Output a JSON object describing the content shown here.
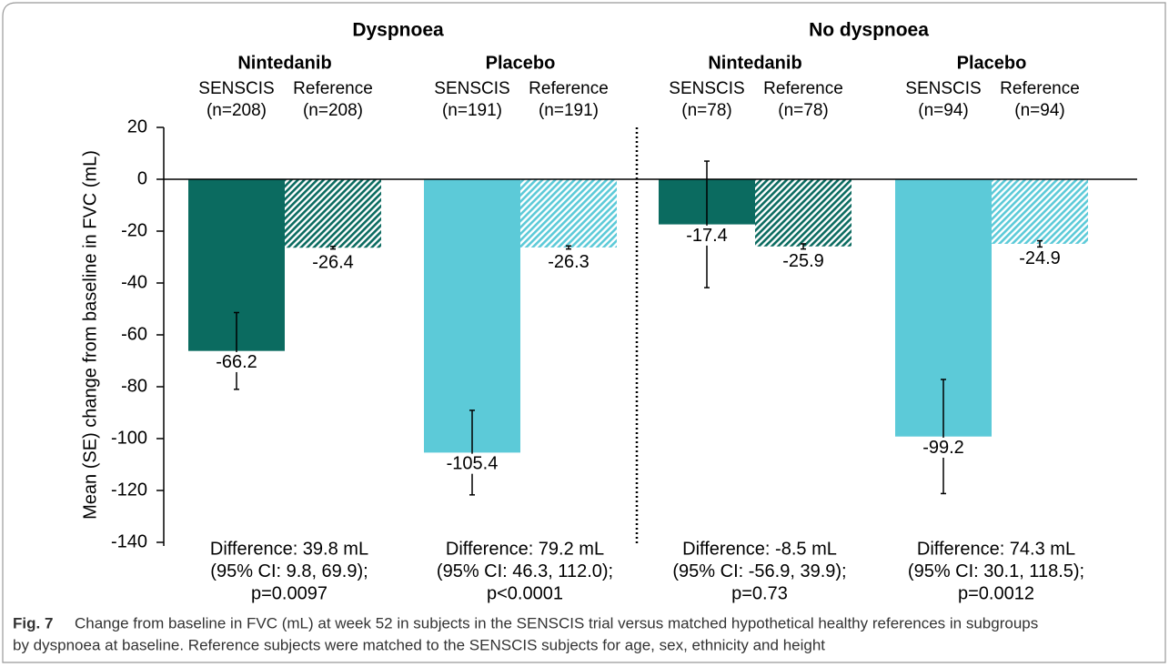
{
  "chart_data": {
    "type": "grouped-bar",
    "y_label": "Mean (SE) change from baseline in FVC (mL)",
    "ylim": [
      -140,
      20
    ],
    "yticks": [
      20,
      0,
      -20,
      -40,
      -60,
      -80,
      -100,
      -120,
      -140
    ],
    "groups": [
      {
        "name": "Dyspnoea",
        "subgroups": [
          {
            "name": "Nintedanib",
            "color": "#0b6b60",
            "bars": [
              {
                "name": "SENSCIS",
                "n": "(n=208)",
                "value": -66.2,
                "se": 14.8,
                "hatched": false
              },
              {
                "name": "Reference",
                "n": "(n=208)",
                "value": -26.4,
                "se": 0.5,
                "hatched": true
              }
            ],
            "difference": [
              "Difference: 39.8 mL",
              "(95% CI: 9.8, 69.9);",
              "p=0.0097"
            ]
          },
          {
            "name": "Placebo",
            "color": "#5ccad8",
            "bars": [
              {
                "name": "SENSCIS",
                "n": "(n=191)",
                "value": -105.4,
                "se": 16.3,
                "hatched": false
              },
              {
                "name": "Reference",
                "n": "(n=191)",
                "value": -26.3,
                "se": 0.6,
                "hatched": true
              }
            ],
            "difference": [
              "Difference: 79.2 mL",
              "(95% CI: 46.3, 112.0);",
              "p<0.0001"
            ]
          }
        ]
      },
      {
        "name": "No dyspnoea",
        "subgroups": [
          {
            "name": "Nintedanib",
            "color": "#0b6b60",
            "bars": [
              {
                "name": "SENSCIS",
                "n": "(n=78)",
                "value": -17.4,
                "se": 24.4,
                "hatched": false
              },
              {
                "name": "Reference",
                "n": "(n=78)",
                "value": -25.9,
                "se": 1.0,
                "hatched": true
              }
            ],
            "difference": [
              "Difference: -8.5 mL",
              "(95% CI: -56.9, 39.9);",
              "p=0.73"
            ]
          },
          {
            "name": "Placebo",
            "color": "#5ccad8",
            "bars": [
              {
                "name": "SENSCIS",
                "n": "(n=94)",
                "value": -99.2,
                "se": 22.0,
                "hatched": false
              },
              {
                "name": "Reference",
                "n": "(n=94)",
                "value": -24.9,
                "se": 1.2,
                "hatched": true
              }
            ],
            "difference": [
              "Difference: 74.3 mL",
              "(95% CI: 30.1, 118.5);",
              "p=0.0012"
            ]
          }
        ]
      }
    ],
    "caption": {
      "label": "Fig. 7",
      "lines": [
        "Change from baseline in FVC (mL) at week 52 in subjects in the SENSCIS trial versus matched hypothetical healthy references in subgroups",
        "by dyspnoea at baseline. Reference subjects were matched to the SENSCIS subjects for age, sex, ethnicity and height"
      ]
    }
  }
}
